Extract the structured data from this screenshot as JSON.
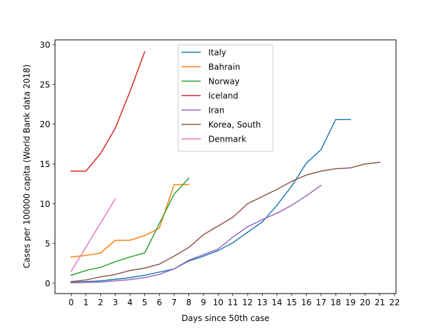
{
  "chart_data": {
    "type": "line",
    "title": "",
    "xlabel": "Days since 50th case",
    "ylabel": "Cases per 100000 capita (World Bank data 2018)",
    "xlim": [
      -1.1,
      22.1
    ],
    "ylim": [
      -1.3,
      30.6
    ],
    "xticks": [
      0,
      1,
      2,
      3,
      4,
      5,
      6,
      7,
      8,
      9,
      10,
      11,
      12,
      13,
      14,
      15,
      16,
      17,
      18,
      19,
      20,
      21,
      22
    ],
    "yticks": [
      0,
      5,
      10,
      15,
      20,
      25,
      30
    ],
    "grid": false,
    "legend_position": "upper-center",
    "series": [
      {
        "name": "Italy",
        "color": "#1f77b4",
        "x": [
          0,
          1,
          2,
          3,
          4,
          5,
          6,
          7,
          8,
          9,
          10,
          11,
          12,
          13,
          14,
          15,
          16,
          17,
          18,
          19
        ],
        "y": [
          0.1,
          0.2,
          0.3,
          0.5,
          0.7,
          1.0,
          1.4,
          1.8,
          2.8,
          3.4,
          4.1,
          5.1,
          6.4,
          7.7,
          9.8,
          12.2,
          15.1,
          16.8,
          20.6,
          20.6
        ]
      },
      {
        "name": "Bahrain",
        "color": "#ff7f0e",
        "x": [
          0,
          1,
          2,
          3,
          4,
          5,
          6,
          7,
          8
        ],
        "y": [
          3.3,
          3.5,
          3.8,
          5.4,
          5.4,
          6.0,
          6.9,
          12.4,
          12.4
        ]
      },
      {
        "name": "Norway",
        "color": "#2ca02c",
        "x": [
          0,
          1,
          2,
          3,
          4,
          5,
          6,
          7,
          8
        ],
        "y": [
          1.0,
          1.6,
          2.0,
          2.7,
          3.3,
          3.8,
          7.5,
          11.2,
          13.2
        ]
      },
      {
        "name": "Iceland",
        "color": "#d62728",
        "x": [
          0,
          1,
          2,
          3,
          4,
          5
        ],
        "y": [
          14.1,
          14.1,
          16.3,
          19.5,
          24.1,
          29.1
        ]
      },
      {
        "name": "Iran",
        "color": "#9467bd",
        "x": [
          0,
          1,
          2,
          3,
          4,
          5,
          6,
          7,
          8,
          9,
          10,
          11,
          12,
          13,
          14,
          15,
          16,
          17
        ],
        "y": [
          0.05,
          0.1,
          0.15,
          0.3,
          0.45,
          0.7,
          1.1,
          1.8,
          2.9,
          3.6,
          4.3,
          5.8,
          7.1,
          8.0,
          8.8,
          9.8,
          11.0,
          12.3
        ]
      },
      {
        "name": "Korea, South",
        "color": "#8c564b",
        "x": [
          0,
          1,
          2,
          3,
          4,
          5,
          6,
          7,
          8,
          9,
          10,
          11,
          12,
          13,
          14,
          15,
          16,
          17,
          18,
          19,
          20,
          21
        ],
        "y": [
          0.2,
          0.4,
          0.8,
          1.1,
          1.6,
          1.9,
          2.4,
          3.4,
          4.5,
          6.1,
          7.2,
          8.3,
          10.0,
          10.9,
          11.8,
          12.8,
          13.6,
          14.1,
          14.4,
          14.5,
          15.0,
          15.2
        ]
      },
      {
        "name": "Denmark",
        "color": "#e377c2",
        "x": [
          0,
          3
        ],
        "y": [
          1.5,
          10.6
        ]
      }
    ]
  }
}
